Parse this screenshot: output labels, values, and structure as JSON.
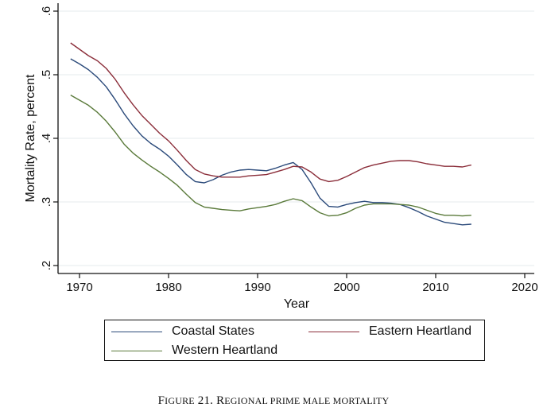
{
  "chart_data": {
    "type": "line",
    "title": "",
    "xlabel": "Year",
    "ylabel": "Mortality Rate, percent",
    "xlim": [
      1967,
      2021
    ],
    "ylim": [
      0.19,
      0.61
    ],
    "xticks": [
      1970,
      1980,
      1990,
      2000,
      2010,
      2020
    ],
    "xtick_labels": [
      "1970",
      "1980",
      "1990",
      "2000",
      "2010",
      "2020"
    ],
    "yticks": [
      0.2,
      0.3,
      0.4,
      0.5,
      0.6
    ],
    "ytick_labels": [
      ".2",
      ".3",
      ".4",
      ".5",
      ".6"
    ],
    "grid": true,
    "legend_position": "bottom",
    "x": [
      1969,
      1970,
      1971,
      1972,
      1973,
      1974,
      1975,
      1976,
      1977,
      1978,
      1979,
      1980,
      1981,
      1982,
      1983,
      1984,
      1985,
      1986,
      1987,
      1988,
      1989,
      1990,
      1991,
      1992,
      1993,
      1994,
      1995,
      1996,
      1997,
      1998,
      1999,
      2000,
      2001,
      2002,
      2003,
      2004,
      2005,
      2006,
      2007,
      2008,
      2009,
      2010,
      2011,
      2012,
      2013,
      2014
    ],
    "series": [
      {
        "name": "Coastal States",
        "color": "#2b4a7a",
        "values": [
          0.525,
          0.517,
          0.508,
          0.496,
          0.481,
          0.461,
          0.439,
          0.42,
          0.404,
          0.392,
          0.383,
          0.372,
          0.358,
          0.343,
          0.332,
          0.33,
          0.335,
          0.342,
          0.347,
          0.35,
          0.351,
          0.35,
          0.349,
          0.353,
          0.358,
          0.362,
          0.351,
          0.33,
          0.306,
          0.293,
          0.292,
          0.296,
          0.299,
          0.301,
          0.299,
          0.299,
          0.298,
          0.296,
          0.291,
          0.285,
          0.278,
          0.273,
          0.268,
          0.266,
          0.264,
          0.265
        ]
      },
      {
        "name": "Eastern Heartland",
        "color": "#8b2e3a",
        "values": [
          0.55,
          0.54,
          0.53,
          0.522,
          0.51,
          0.493,
          0.472,
          0.453,
          0.436,
          0.422,
          0.408,
          0.396,
          0.381,
          0.365,
          0.351,
          0.344,
          0.341,
          0.339,
          0.339,
          0.339,
          0.341,
          0.342,
          0.343,
          0.347,
          0.351,
          0.356,
          0.355,
          0.347,
          0.336,
          0.332,
          0.334,
          0.34,
          0.347,
          0.354,
          0.358,
          0.361,
          0.364,
          0.365,
          0.365,
          0.363,
          0.36,
          0.358,
          0.356,
          0.356,
          0.355,
          0.358
        ]
      },
      {
        "name": "Western Heartland",
        "color": "#5a7a3a",
        "values": [
          0.468,
          0.46,
          0.452,
          0.441,
          0.427,
          0.41,
          0.391,
          0.377,
          0.366,
          0.356,
          0.347,
          0.337,
          0.326,
          0.312,
          0.299,
          0.292,
          0.29,
          0.288,
          0.287,
          0.286,
          0.289,
          0.291,
          0.293,
          0.296,
          0.301,
          0.305,
          0.302,
          0.292,
          0.283,
          0.278,
          0.279,
          0.283,
          0.29,
          0.295,
          0.297,
          0.297,
          0.297,
          0.296,
          0.295,
          0.292,
          0.287,
          0.282,
          0.279,
          0.279,
          0.278,
          0.279
        ]
      }
    ]
  },
  "legend": {
    "items": [
      {
        "label": "Coastal States",
        "color": "#2b4a7a"
      },
      {
        "label": "Eastern Heartland",
        "color": "#8b2e3a"
      },
      {
        "label": "Western Heartland",
        "color": "#5a7a3a"
      }
    ]
  },
  "caption": {
    "figure_cap": "F",
    "figure_rest": "IGURE",
    "number": " 21. ",
    "w1_cap": "R",
    "w1_rest": "EGIONAL PRIME MALE MORTALITY"
  }
}
